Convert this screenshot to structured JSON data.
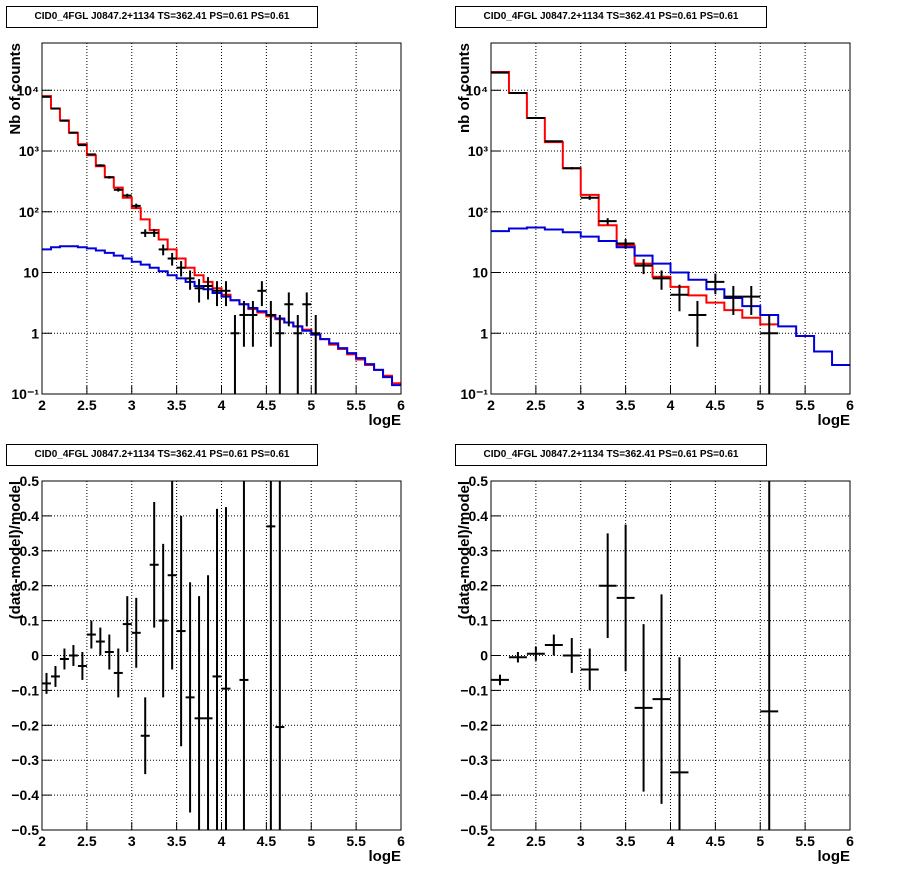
{
  "panels": [
    {
      "title": "CID0_4FGL J0847.2+1134 TS=362.41 PS=0.61 PS=0.61",
      "xlabel": "logE",
      "ylabel": "Nb of counts",
      "xlim": [
        2,
        6
      ],
      "ylim": [
        0.1,
        60000
      ],
      "ylog": true,
      "xticks": [
        "2",
        "2.5",
        "3",
        "3.5",
        "4",
        "4.5",
        "5",
        "5.5",
        "6"
      ],
      "yticks": [
        {
          "value": 0.1,
          "label": "10⁻¹"
        },
        {
          "value": 1,
          "label": "1"
        },
        {
          "value": 10,
          "label": "10"
        },
        {
          "value": 100,
          "label": "10²"
        },
        {
          "value": 1000,
          "label": "10³"
        },
        {
          "value": 10000,
          "label": "10⁴"
        }
      ]
    },
    {
      "title": "CID0_4FGL J0847.2+1134 TS=362.41 PS=0.61 PS=0.61",
      "xlabel": "logE",
      "ylabel": "nb of counts",
      "xlim": [
        2,
        6
      ],
      "ylim": [
        0.1,
        60000
      ],
      "ylog": true,
      "xticks": [
        "2",
        "2.5",
        "3",
        "3.5",
        "4",
        "4.5",
        "5",
        "5.5",
        "6"
      ],
      "yticks": [
        {
          "value": 0.1,
          "label": "10⁻¹"
        },
        {
          "value": 1,
          "label": "1"
        },
        {
          "value": 10,
          "label": "10"
        },
        {
          "value": 100,
          "label": "10²"
        },
        {
          "value": 1000,
          "label": "10³"
        },
        {
          "value": 10000,
          "label": "10⁴"
        }
      ]
    },
    {
      "title": "CID0_4FGL J0847.2+1134 TS=362.41 PS=0.61 PS=0.61",
      "xlabel": "logE",
      "ylabel": "(data-model)/model",
      "xlim": [
        2,
        6
      ],
      "ylim": [
        -0.5,
        0.5
      ],
      "ylog": false,
      "xticks": [
        "2",
        "2.5",
        "3",
        "3.5",
        "4",
        "4.5",
        "5",
        "5.5",
        "6"
      ],
      "yticks": [
        {
          "value": -0.5,
          "label": "−0.5"
        },
        {
          "value": -0.4,
          "label": "−0.4"
        },
        {
          "value": -0.3,
          "label": "−0.3"
        },
        {
          "value": -0.2,
          "label": "−0.2"
        },
        {
          "value": -0.1,
          "label": "−0.1"
        },
        {
          "value": 0,
          "label": "0"
        },
        {
          "value": 0.1,
          "label": "0.1"
        },
        {
          "value": 0.2,
          "label": "0.2"
        },
        {
          "value": 0.3,
          "label": "0.3"
        },
        {
          "value": 0.4,
          "label": "0.4"
        },
        {
          "value": 0.5,
          "label": "0.5"
        }
      ]
    },
    {
      "title": "CID0_4FGL J0847.2+1134 TS=362.41 PS=0.61 PS=0.61",
      "xlabel": "logE",
      "ylabel": "(data-model)/model",
      "xlim": [
        2,
        6
      ],
      "ylim": [
        -0.5,
        0.5
      ],
      "ylog": false,
      "xticks": [
        "2",
        "2.5",
        "3",
        "3.5",
        "4",
        "4.5",
        "5",
        "5.5",
        "6"
      ],
      "yticks": [
        {
          "value": -0.5,
          "label": "−0.5"
        },
        {
          "value": -0.4,
          "label": "−0.4"
        },
        {
          "value": -0.3,
          "label": "−0.3"
        },
        {
          "value": -0.2,
          "label": "−0.2"
        },
        {
          "value": -0.1,
          "label": "−0.1"
        },
        {
          "value": 0,
          "label": "0"
        },
        {
          "value": 0.1,
          "label": "0.1"
        },
        {
          "value": 0.2,
          "label": "0.2"
        },
        {
          "value": 0.3,
          "label": "0.3"
        },
        {
          "value": 0.4,
          "label": "0.4"
        },
        {
          "value": 0.5,
          "label": "0.5"
        }
      ]
    }
  ],
  "chart_data": [
    {
      "type": "line",
      "grid": true,
      "series": [
        {
          "kind": "step",
          "color": "#ff0000",
          "binwidth": 0.1,
          "x": [
            2.0,
            2.1,
            2.2,
            2.3,
            2.4,
            2.5,
            2.6,
            2.7,
            2.8,
            2.9,
            3.0,
            3.1,
            3.2,
            3.3,
            3.4,
            3.5,
            3.6,
            3.7,
            3.8,
            3.9,
            4.0,
            4.1,
            4.2,
            4.3,
            4.4,
            4.5,
            4.6,
            4.7,
            4.8,
            4.9,
            5.0,
            5.1,
            5.2,
            5.3,
            5.4,
            5.5,
            5.6,
            5.7,
            5.8,
            5.9
          ],
          "values": [
            8000,
            5000,
            3200,
            2000,
            1300,
            850,
            560,
            370,
            250,
            170,
            115,
            75,
            50,
            35,
            24,
            17,
            12,
            9,
            7,
            5.5,
            4.3,
            3.5,
            3.0,
            2.5,
            2.2,
            1.9,
            1.7,
            1.5,
            1.3,
            1.15,
            0.95,
            0.8,
            0.65,
            0.55,
            0.45,
            0.37,
            0.3,
            0.25,
            0.2,
            0.15
          ]
        },
        {
          "kind": "step",
          "color": "#0000dd",
          "binwidth": 0.1,
          "x": [
            2.0,
            2.1,
            2.2,
            2.3,
            2.4,
            2.5,
            2.6,
            2.7,
            2.8,
            2.9,
            3.0,
            3.1,
            3.2,
            3.3,
            3.4,
            3.5,
            3.6,
            3.7,
            3.8,
            3.9,
            4.0,
            4.1,
            4.2,
            4.3,
            4.4,
            4.5,
            4.6,
            4.7,
            4.8,
            4.9,
            5.0,
            5.1,
            5.2,
            5.3,
            5.4,
            5.5,
            5.6,
            5.7,
            5.8,
            5.9
          ],
          "values": [
            24,
            26,
            27,
            27,
            26,
            25,
            23,
            21,
            19,
            17,
            15,
            13.5,
            12,
            10.5,
            9,
            8,
            7,
            6,
            5.3,
            4.6,
            4.0,
            3.5,
            3.0,
            2.6,
            2.3,
            2.0,
            1.75,
            1.5,
            1.3,
            1.1,
            0.95,
            0.8,
            0.68,
            0.57,
            0.47,
            0.39,
            0.31,
            0.25,
            0.19,
            0.14
          ]
        },
        {
          "kind": "errorbar",
          "color": "#000000",
          "xerr": 0.05,
          "x": [
            2.05,
            2.15,
            2.25,
            2.35,
            2.45,
            2.55,
            2.65,
            2.75,
            2.85,
            2.95,
            3.05,
            3.15,
            3.25,
            3.35,
            3.45,
            3.55,
            3.65,
            3.75,
            3.85,
            3.95,
            4.05,
            4.15,
            4.25,
            4.35,
            4.45,
            4.55,
            4.65,
            4.75,
            4.85,
            4.95,
            5.05
          ],
          "values": [
            7800,
            5000,
            3150,
            2000,
            1250,
            880,
            580,
            370,
            230,
            185,
            125,
            45,
            45,
            24,
            17,
            12,
            8,
            5.5,
            6,
            5,
            5,
            1,
            2,
            2,
            5,
            2,
            1,
            3,
            1,
            3,
            1
          ],
          "err_low": [
            90,
            70,
            55,
            45,
            35,
            30,
            24,
            19,
            15,
            13,
            11,
            6.5,
            6.5,
            4.8,
            4.0,
            3.4,
            2.8,
            2.3,
            2.4,
            2.2,
            2.2,
            0.9,
            1.4,
            1.4,
            2.2,
            1.4,
            0.9,
            1.7,
            0.9,
            1.7,
            0.9
          ],
          "err_high": [
            90,
            70,
            55,
            45,
            35,
            30,
            24,
            19,
            15,
            13,
            11,
            6.5,
            6.5,
            4.8,
            4.0,
            3.4,
            2.8,
            2.3,
            2.4,
            2.2,
            2.2,
            1.0,
            1.4,
            1.4,
            2.2,
            1.4,
            1.0,
            1.7,
            1.0,
            1.7,
            1.0
          ]
        }
      ]
    },
    {
      "type": "line",
      "grid": true,
      "series": [
        {
          "kind": "step",
          "color": "#ff0000",
          "binwidth": 0.2,
          "x": [
            2.0,
            2.2,
            2.4,
            2.6,
            2.8,
            3.0,
            3.2,
            3.4,
            3.6,
            3.8,
            4.0,
            4.2,
            4.4,
            4.6,
            4.8,
            5.0
          ],
          "values": [
            20000,
            9000,
            3500,
            1400,
            520,
            190,
            60,
            28,
            14,
            8.5,
            5.8,
            4.2,
            3.2,
            2.4,
            1.8,
            1.4
          ]
        },
        {
          "kind": "step",
          "color": "#0000dd",
          "binwidth": 0.2,
          "x": [
            2.0,
            2.2,
            2.4,
            2.6,
            2.8,
            3.0,
            3.2,
            3.4,
            3.6,
            3.8,
            4.0,
            4.2,
            4.4,
            4.6,
            4.8,
            5.0,
            5.2,
            5.4,
            5.6,
            5.8
          ],
          "values": [
            48,
            53,
            55,
            51,
            46,
            39,
            33,
            26,
            19,
            14,
            10,
            7.6,
            5.3,
            3.8,
            2.8,
            2.0,
            1.3,
            0.9,
            0.5,
            0.3
          ]
        },
        {
          "kind": "errorbar",
          "color": "#000000",
          "xerr": 0.1,
          "x": [
            2.1,
            2.3,
            2.5,
            2.7,
            2.9,
            3.1,
            3.3,
            3.5,
            3.7,
            3.9,
            4.1,
            4.3,
            4.5,
            4.7,
            4.9,
            5.1
          ],
          "values": [
            19500,
            9000,
            3500,
            1450,
            520,
            170,
            70,
            30,
            13,
            8,
            4.3,
            2,
            7,
            4,
            4,
            1
          ],
          "err_low": [
            140,
            95,
            60,
            38,
            23,
            13,
            8.4,
            5.5,
            3.6,
            2.8,
            2.0,
            1.4,
            2.6,
            2.0,
            2.0,
            0.9
          ],
          "err_high": [
            140,
            95,
            60,
            38,
            23,
            13,
            8.4,
            5.5,
            3.6,
            2.8,
            2.0,
            1.4,
            2.6,
            2.0,
            2.0,
            1.0
          ]
        }
      ]
    },
    {
      "type": "scatter",
      "grid": true,
      "series": [
        {
          "kind": "errorbar",
          "color": "#000000",
          "xerr": 0.05,
          "x": [
            2.05,
            2.15,
            2.25,
            2.35,
            2.45,
            2.55,
            2.65,
            2.75,
            2.85,
            2.95,
            3.05,
            3.15,
            3.25,
            3.35,
            3.45,
            3.55,
            3.65,
            3.75,
            3.85,
            3.95,
            4.05,
            4.25,
            4.55,
            4.65
          ],
          "values": [
            -0.08,
            -0.06,
            -0.01,
            0.0,
            -0.03,
            0.06,
            0.04,
            0.01,
            -0.05,
            0.09,
            0.065,
            -0.23,
            0.26,
            0.1,
            0.23,
            0.07,
            -0.12,
            -0.18,
            -0.18,
            -0.06,
            -0.095,
            -0.07,
            0.37,
            -0.205
          ],
          "err_low": [
            0.03,
            0.03,
            0.03,
            0.03,
            0.04,
            0.04,
            0.04,
            0.05,
            0.07,
            0.08,
            0.1,
            0.11,
            0.18,
            0.22,
            0.27,
            0.33,
            0.33,
            0.35,
            0.41,
            0.48,
            0.52,
            0.6,
            1.0,
            1.0
          ],
          "err_high": [
            0.03,
            0.03,
            0.03,
            0.03,
            0.04,
            0.04,
            0.04,
            0.05,
            0.07,
            0.08,
            0.1,
            0.11,
            0.18,
            0.22,
            0.27,
            0.33,
            0.33,
            0.35,
            0.41,
            0.48,
            0.52,
            0.6,
            1.0,
            1.0
          ]
        }
      ]
    },
    {
      "type": "scatter",
      "grid": true,
      "series": [
        {
          "kind": "errorbar",
          "color": "#000000",
          "xerr": 0.1,
          "x": [
            2.1,
            2.3,
            2.5,
            2.7,
            2.9,
            3.1,
            3.3,
            3.5,
            3.7,
            3.9,
            4.1,
            5.1
          ],
          "values": [
            -0.07,
            -0.005,
            0.005,
            0.03,
            0.0,
            -0.04,
            0.2,
            0.165,
            -0.15,
            -0.125,
            -0.335,
            -0.16
          ],
          "err_low": [
            0.015,
            0.015,
            0.02,
            0.03,
            0.05,
            0.06,
            0.15,
            0.21,
            0.24,
            0.3,
            0.33,
            1.0
          ],
          "err_high": [
            0.015,
            0.015,
            0.02,
            0.03,
            0.05,
            0.06,
            0.15,
            0.21,
            0.24,
            0.3,
            0.33,
            1.0
          ]
        }
      ]
    }
  ]
}
